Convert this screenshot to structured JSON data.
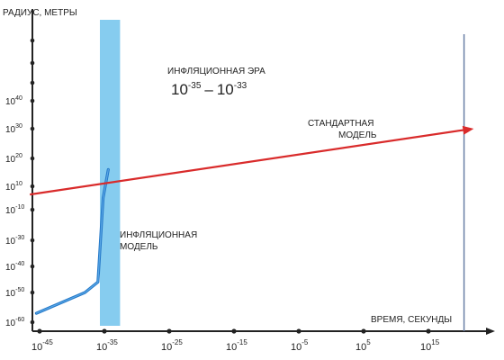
{
  "chart_data": {
    "type": "line",
    "title": "",
    "ylabel": "РАДИУС, МЕТРЫ",
    "xlabel": "ВРЕМЯ, СЕКУНДЫ",
    "x_scale": "log",
    "y_scale": "log",
    "x_ticks": [
      {
        "base": "10",
        "exp": "-45",
        "value": -45
      },
      {
        "base": "10",
        "exp": "-35",
        "value": -35
      },
      {
        "base": "10",
        "exp": "-25",
        "value": -25
      },
      {
        "base": "10",
        "exp": "-15",
        "value": -15
      },
      {
        "base": "10",
        "exp": "-5",
        "value": -5
      },
      {
        "base": "10",
        "exp": "5",
        "value": 5
      },
      {
        "base": "10",
        "exp": "15",
        "value": 15
      }
    ],
    "y_ticks": [
      {
        "base": "10",
        "exp": "40",
        "value": 40
      },
      {
        "base": "10",
        "exp": "30",
        "value": 30
      },
      {
        "base": "10",
        "exp": "20",
        "value": 20
      },
      {
        "base": "10",
        "exp": "10",
        "value": 10
      },
      {
        "base": "10",
        "exp": "-10",
        "value": -10
      },
      {
        "base": "10",
        "exp": "-30",
        "value": -30
      },
      {
        "base": "10",
        "exp": "-40",
        "value": -40
      },
      {
        "base": "10",
        "exp": "-50",
        "value": -50
      },
      {
        "base": "10",
        "exp": "-60",
        "value": -60
      }
    ],
    "inflation_band": {
      "label": "ИНФЛЯЦИОННАЯ ЭРА",
      "range_from": {
        "base": "10",
        "exp": "-35"
      },
      "range_dash": "–",
      "range_to": {
        "base": "10",
        "exp": "-33"
      },
      "color": "#86ccef"
    },
    "series": [
      {
        "name": "СТАНДАРТНАЯ МОДЕЛЬ",
        "label_lines": [
          "СТАНДАРТНАЯ",
          "МОДЕЛЬ"
        ],
        "color": "#d92b2b",
        "points": [
          {
            "x": -46.5,
            "y": 3
          },
          {
            "x": 22,
            "y": 30
          }
        ]
      },
      {
        "name": "ИНФЛЯЦИОННАЯ МОДЕЛЬ",
        "label_lines": [
          "ИНФЛЯЦИОННАЯ",
          "МОДЕЛЬ"
        ],
        "color": "#2478c8",
        "points": [
          {
            "x": -45.5,
            "y": -57
          },
          {
            "x": -38,
            "y": -50
          },
          {
            "x": -36,
            "y": -46
          },
          {
            "x": -35.8,
            "y": -38
          },
          {
            "x": -35.2,
            "y": 0
          },
          {
            "x": -34.4,
            "y": 16
          }
        ]
      }
    ],
    "colors": {
      "axis": "#222222",
      "marker_line": "#6a7fa6"
    }
  }
}
